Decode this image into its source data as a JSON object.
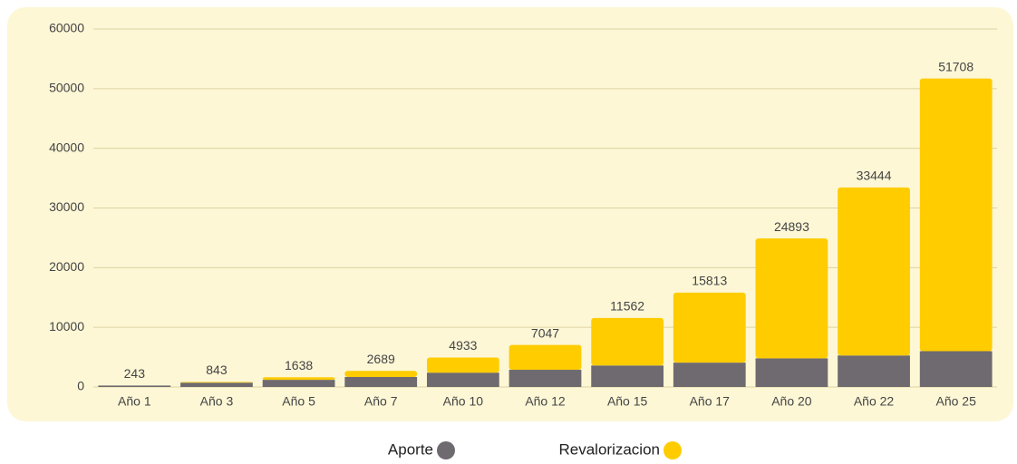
{
  "chart_data": {
    "type": "stacked_bar",
    "categories": [
      "Año 1",
      "Año 3",
      "Año 5",
      "Año 7",
      "Año 10",
      "Año 12",
      "Año 15",
      "Año 17",
      "Año 20",
      "Año 22",
      "Año 25"
    ],
    "series": [
      {
        "name": "Aporte",
        "color": "#6e6a6f",
        "values": [
          240,
          720,
          1200,
          1680,
          2400,
          2880,
          3600,
          4080,
          4800,
          5280,
          6000
        ]
      },
      {
        "name": "Revalorizacion",
        "color": "#ffcc00",
        "values": [
          3,
          123,
          438,
          1009,
          2533,
          4167,
          7962,
          11733,
          20093,
          28164,
          45708
        ]
      }
    ],
    "totals": [
      243,
      843,
      1638,
      2689,
      4933,
      7047,
      11562,
      15813,
      24893,
      33444,
      51708
    ],
    "ylim": [
      0,
      60000
    ],
    "yticks": [
      0,
      10000,
      20000,
      30000,
      40000,
      50000,
      60000
    ],
    "grid": true,
    "legend": "bottom"
  }
}
